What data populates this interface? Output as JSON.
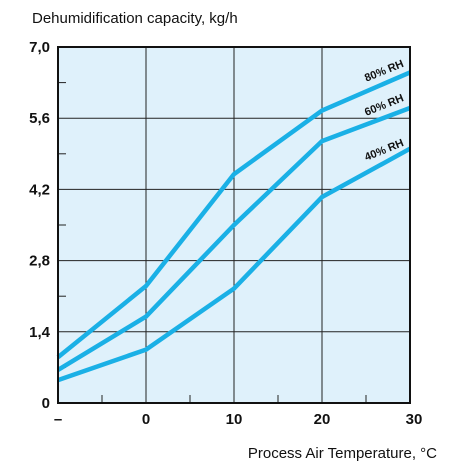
{
  "chart_data": {
    "type": "line",
    "title": "Dehumidification capacity, kg/h",
    "xlabel": "Process Air Temperature, °C",
    "ylabel": "",
    "xlim": [
      -10,
      30
    ],
    "ylim": [
      0,
      7.0
    ],
    "x_ticks": [
      {
        "value": -10,
        "label": "–"
      },
      {
        "value": 0,
        "label": "0"
      },
      {
        "value": 10,
        "label": "10"
      },
      {
        "value": 20,
        "label": "20"
      },
      {
        "value": 30,
        "label": "30"
      }
    ],
    "y_ticks": [
      {
        "value": 0,
        "label": "0"
      },
      {
        "value": 1.4,
        "label": "1,4"
      },
      {
        "value": 2.8,
        "label": "2,8"
      },
      {
        "value": 4.2,
        "label": "4,2"
      },
      {
        "value": 5.6,
        "label": "5,6"
      },
      {
        "value": 7.0,
        "label": "7,0"
      }
    ],
    "grid": true,
    "background_color": "#dff1fb",
    "line_color": "#1ab0e6",
    "series": [
      {
        "name": "80% RH",
        "x": [
          -10,
          0,
          10,
          20,
          30
        ],
        "y": [
          0.9,
          2.3,
          4.5,
          5.75,
          6.5
        ]
      },
      {
        "name": "60% RH",
        "x": [
          -10,
          0,
          10,
          20,
          30
        ],
        "y": [
          0.65,
          1.7,
          3.5,
          5.15,
          5.8
        ]
      },
      {
        "name": "40% RH",
        "x": [
          -10,
          0,
          10,
          20,
          30
        ],
        "y": [
          0.45,
          1.05,
          2.25,
          4.05,
          5.0
        ]
      }
    ]
  }
}
